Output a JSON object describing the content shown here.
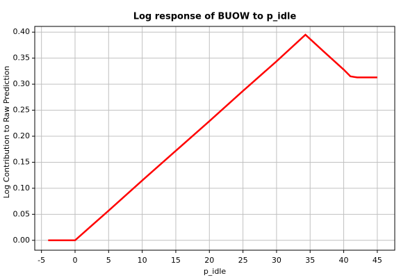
{
  "chart_data": {
    "type": "line",
    "title": "Log response of BUOW to p_idle",
    "x_label": "p_idle",
    "y_label": "Log Contribution to Raw Prediction",
    "x": [
      -4,
      0,
      5,
      10,
      15,
      20,
      25,
      30,
      34.3,
      37,
      40,
      41,
      42,
      45
    ],
    "series": [
      {
        "color": "#ff0000",
        "values": [
          0,
          0,
          0.057,
          0.115,
          0.172,
          0.229,
          0.287,
          0.344,
          0.395,
          0.363,
          0.328,
          0.315,
          0.313,
          0.313
        ]
      }
    ],
    "xlim": [
      -6,
      47.6
    ],
    "xticks": [
      -5,
      0,
      5,
      10,
      15,
      20,
      25,
      30,
      35,
      40,
      45
    ],
    "ylim": [
      -0.019,
      0.411
    ],
    "yticks": [
      {
        "value": 0,
        "label": "0.00"
      },
      {
        "value": 0.05,
        "label": "0.05"
      },
      {
        "value": 0.1,
        "label": "0.10"
      },
      {
        "value": 0.15,
        "label": "0.15"
      },
      {
        "value": 0.2,
        "label": "0.20"
      },
      {
        "value": 0.25,
        "label": "0.25"
      },
      {
        "value": 0.3,
        "label": "0.30"
      },
      {
        "value": 0.35,
        "label": "0.35"
      },
      {
        "value": 0.4,
        "label": "0.40"
      }
    ],
    "grid": true
  }
}
